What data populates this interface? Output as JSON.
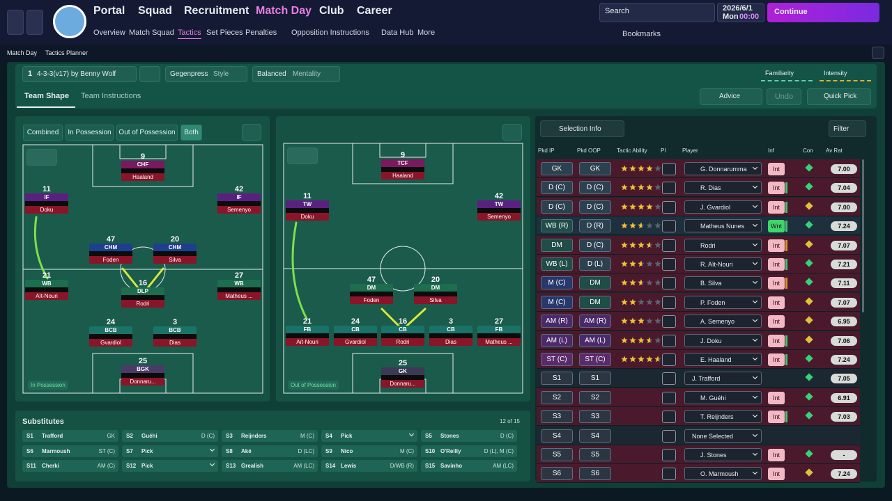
{
  "nav": {
    "menu": [
      "Portal",
      "Squad",
      "Recruitment",
      "Match Day",
      "Club",
      "Career"
    ],
    "submenu": [
      "Overview",
      "Match Squad",
      "Tactics",
      "Set Pieces",
      "Penalties",
      "Opposition Instructions",
      "Data Hub",
      "More"
    ],
    "search": "Search",
    "date": "2026/6/1",
    "day": "Mon",
    "time": "00:00",
    "continue": "Continue",
    "bookmarks": "Bookmarks"
  },
  "breadcrumb": [
    "Match Day",
    "Tactics Planner"
  ],
  "tactic": {
    "slot": "1",
    "name": "4-3-3(v17) by Benny Wolf",
    "style": "Gegenpress",
    "style_label": "Style",
    "mentality": "Balanced",
    "mentality_label": "Mentality",
    "familiarity": "Familiarity",
    "intensity": "Intensity"
  },
  "tabs": {
    "items": [
      "Team Shape",
      "Team Instructions"
    ],
    "advice": "Advice",
    "undo": "Undo",
    "quick_pick": "Quick Pick"
  },
  "view_filters": [
    "Combined",
    "In Possession",
    "Out of Possession",
    "Both"
  ],
  "pitches": [
    {
      "label": "In Possession",
      "players": [
        {
          "number": 9,
          "role": "CHF",
          "name": "Haaland"
        },
        {
          "number": 11,
          "role": "IF",
          "name": "Doku"
        },
        {
          "number": 42,
          "role": "IF",
          "name": "Semenyo"
        },
        {
          "number": 47,
          "role": "CHM",
          "name": "Foden"
        },
        {
          "number": 20,
          "role": "CHM",
          "name": "Silva"
        },
        {
          "number": 21,
          "role": "WB",
          "name": "Aït-Nouri"
        },
        {
          "number": 16,
          "role": "DLP",
          "name": "Rodri"
        },
        {
          "number": 27,
          "role": "WB",
          "name": "Matheus ..."
        },
        {
          "number": 24,
          "role": "BCB",
          "name": "Gvardiol"
        },
        {
          "number": 3,
          "role": "BCB",
          "name": "Dias"
        },
        {
          "number": 25,
          "role": "BGK",
          "name": "Donnaru..."
        }
      ]
    },
    {
      "label": "Out of Possession",
      "players": [
        {
          "number": 9,
          "role": "TCF",
          "name": "Haaland"
        },
        {
          "number": 11,
          "role": "TW",
          "name": "Doku"
        },
        {
          "number": 42,
          "role": "TW",
          "name": "Semenyo"
        },
        {
          "number": 47,
          "role": "DM",
          "name": "Foden"
        },
        {
          "number": 20,
          "role": "DM",
          "name": "Silva"
        },
        {
          "number": 21,
          "role": "FB",
          "name": "Aït-Nouri"
        },
        {
          "number": 24,
          "role": "CB",
          "name": "Gvardiol"
        },
        {
          "number": 16,
          "role": "CB",
          "name": "Rodri"
        },
        {
          "number": 3,
          "role": "CB",
          "name": "Dias"
        },
        {
          "number": 27,
          "role": "FB",
          "name": "Matheus ..."
        },
        {
          "number": 25,
          "role": "GK",
          "name": "Donnaru..."
        }
      ]
    }
  ],
  "substitutes": {
    "title": "Substitutes",
    "count": "12 of 15",
    "slots": [
      {
        "slot": "S1",
        "name": "Trafford",
        "position": "GK"
      },
      {
        "slot": "S2",
        "name": "Guéhi",
        "position": "D (C)"
      },
      {
        "slot": "S3",
        "name": "Reijnders",
        "position": "M (C)"
      },
      {
        "slot": "S4",
        "name": "Pick"
      },
      {
        "slot": "S5",
        "name": "Stones",
        "position": "D (C)"
      },
      {
        "slot": "S6",
        "name": "Marmoush",
        "position": "ST (C)"
      },
      {
        "slot": "S7",
        "name": "Pick"
      },
      {
        "slot": "S8",
        "name": "Aké",
        "position": "D (LC)"
      },
      {
        "slot": "S9",
        "name": "Nico",
        "position": "M (C)"
      },
      {
        "slot": "S10",
        "name": "O'Reilly",
        "position": "D (L), M (C)"
      },
      {
        "slot": "S11",
        "name": "Cherki",
        "position": "AM (C)"
      },
      {
        "slot": "S12",
        "name": "Pick"
      },
      {
        "slot": "S13",
        "name": "Grealish",
        "position": "AM (LC)"
      },
      {
        "slot": "S14",
        "name": "Lewis",
        "position": "D/WB (R)"
      },
      {
        "slot": "S15",
        "name": "Savinho",
        "position": "AM (LC)"
      }
    ]
  },
  "selection": {
    "menu": "Selection Info",
    "filter": "Filter",
    "headers": [
      "Pkd IP",
      "Pkd OOP",
      "Tactic Ability",
      "PI",
      "Player",
      "Inf",
      "Con",
      "Av Rat"
    ],
    "rows": [
      {
        "ip": "GK",
        "oop": "GK",
        "ability": 4,
        "player": "G. Donnarumma",
        "inf": "Int",
        "rating": "7.00"
      },
      {
        "ip": "D (C)",
        "oop": "D (C)",
        "ability": 4,
        "player": "R. Dias",
        "inf": "Int",
        "rating": "7.04"
      },
      {
        "ip": "D (C)",
        "oop": "D (C)",
        "ability": 4,
        "player": "J. Gvardiol",
        "inf": "Int",
        "rating": "7.00"
      },
      {
        "ip": "WB (R)",
        "oop": "D (R)",
        "ability": 2.5,
        "player": "Matheus Nunes",
        "inf": "Wnt",
        "rating": "7.24"
      },
      {
        "ip": "DM",
        "oop": "D (C)",
        "ability": 3.5,
        "player": "Rodri",
        "inf": "Int",
        "rating": "7.07"
      },
      {
        "ip": "WB (L)",
        "oop": "D (L)",
        "ability": 2.5,
        "player": "R. Aït-Nouri",
        "inf": "Int",
        "rating": "7.21"
      },
      {
        "ip": "M (C)",
        "oop": "DM",
        "ability": 2.5,
        "player": "B. Silva",
        "inf": "Int",
        "rating": "7.11"
      },
      {
        "ip": "M (C)",
        "oop": "DM",
        "ability": 2,
        "player": "P. Foden",
        "inf": "Int",
        "rating": "7.07"
      },
      {
        "ip": "AM (R)",
        "oop": "AM (R)",
        "ability": 3,
        "player": "A. Semenyo",
        "inf": "Int",
        "rating": "6.95"
      },
      {
        "ip": "AM (L)",
        "oop": "AM (L)",
        "ability": 3.5,
        "player": "J. Doku",
        "inf": "Int",
        "rating": "7.06"
      },
      {
        "ip": "ST (C)",
        "oop": "ST (C)",
        "ability": 4.5,
        "player": "E. Haaland",
        "inf": "Int",
        "rating": "7.24"
      },
      {
        "ip": "S1",
        "oop": "S1",
        "player": "J. Trafford",
        "rating": "7.05"
      },
      {
        "ip": "S2",
        "oop": "S2",
        "player": "M. Guéhi",
        "inf": "Int",
        "rating": "6.91"
      },
      {
        "ip": "S3",
        "oop": "S3",
        "player": "T. Reijnders",
        "inf": "Int",
        "rating": "7.03"
      },
      {
        "ip": "S4",
        "oop": "S4",
        "player": "None Selected"
      },
      {
        "ip": "S5",
        "oop": "S5",
        "player": "J. Stones",
        "inf": "Int",
        "rating": "-"
      },
      {
        "ip": "S6",
        "oop": "S6",
        "player": "O. Marmoush",
        "inf": "Int",
        "rating": "7.24"
      }
    ]
  }
}
